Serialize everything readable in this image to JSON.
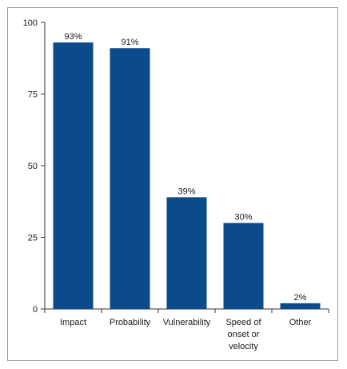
{
  "chart_data": {
    "type": "bar",
    "categories": [
      [
        "Impact"
      ],
      [
        "Probability"
      ],
      [
        "Vulnerability"
      ],
      [
        "Speed of",
        "onset or",
        "velocity"
      ],
      [
        "Other"
      ]
    ],
    "values": [
      93,
      91,
      39,
      30,
      2
    ],
    "data_labels": [
      "93%",
      "91%",
      "39%",
      "30%",
      "2%"
    ],
    "yticks": [
      0,
      25,
      50,
      75,
      100
    ],
    "ylim": [
      0,
      100
    ],
    "bar_color": "#0b4a8b",
    "axis_color": "#333333",
    "grid": false,
    "legend": "none"
  }
}
